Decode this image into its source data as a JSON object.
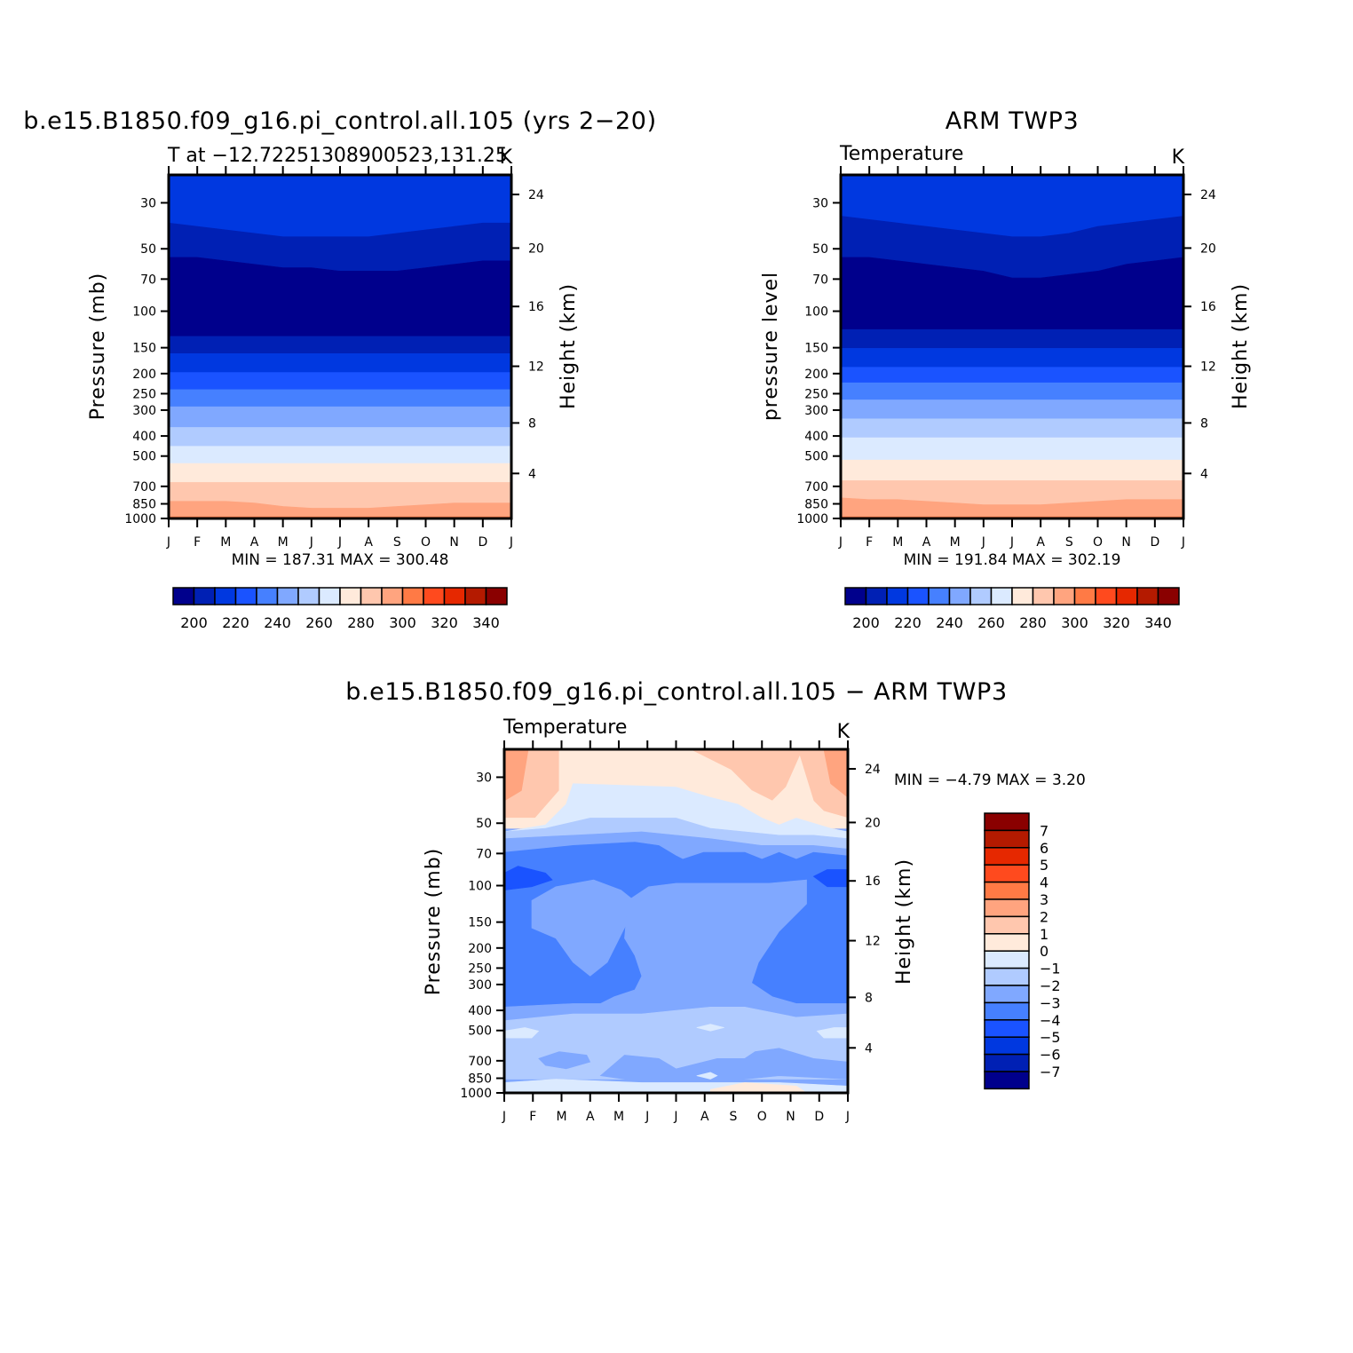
{
  "palette": [
    "#00008c",
    "#0020b4",
    "#0038e0",
    "#1a53ff",
    "#4680ff",
    "#80a8ff",
    "#b0cbff",
    "#dbeaff",
    "#ffeadb",
    "#ffc7ae",
    "#ffa47f",
    "#ff7a45",
    "#ff4a1e",
    "#e62800",
    "#b41a00",
    "#8a0000"
  ],
  "months": [
    "J",
    "F",
    "M",
    "A",
    "M",
    "J",
    "J",
    "A",
    "S",
    "O",
    "N",
    "D",
    "J"
  ],
  "pressure_ticks": [
    "30",
    "50",
    "70",
    "100",
    "150",
    "200",
    "250",
    "300",
    "400",
    "500",
    "700",
    "850",
    "1000"
  ],
  "height_ticks": [
    "24",
    "20",
    "16",
    "12",
    "8",
    "4"
  ],
  "chart_data": [
    {
      "type": "heatmap",
      "id": "model",
      "title": "b.e15.B1850.f09_g16.pi_control.all.105 (yrs 2−20)",
      "subtitle_left": "T at −12.72251308900523,131.25",
      "subtitle_right": "K",
      "ylabel_left": "Pressure (mb)",
      "ylabel_right": "Height (km)",
      "minmax_text": "MIN = 187.31 MAX = 300.48",
      "min": 187.31,
      "max": 300.48,
      "colorbar": {
        "orientation": "horizontal",
        "levels": [
          195,
          200,
          205,
          210,
          215,
          220,
          225,
          230,
          235,
          240,
          245,
          250,
          255,
          260,
          265,
          270,
          275,
          280,
          285,
          290,
          295,
          300,
          305,
          310,
          315,
          320,
          325,
          330,
          335,
          340,
          345
        ],
        "labels": [
          "200",
          "220",
          "240",
          "260",
          "280",
          "300",
          "320",
          "340"
        ]
      }
    },
    {
      "type": "heatmap",
      "id": "obs",
      "title": "ARM TWP3",
      "subtitle_left": "Temperature",
      "subtitle_right": "K",
      "ylabel_left": "pressure level",
      "ylabel_right": "Height (km)",
      "minmax_text": "MIN = 191.84 MAX = 302.19",
      "min": 191.84,
      "max": 302.19,
      "colorbar": {
        "orientation": "horizontal",
        "labels": [
          "200",
          "220",
          "240",
          "260",
          "280",
          "300",
          "320",
          "340"
        ]
      }
    },
    {
      "type": "heatmap",
      "id": "diff",
      "title": "b.e15.B1850.f09_g16.pi_control.all.105 − ARM TWP3",
      "subtitle_left": "Temperature",
      "subtitle_right": "K",
      "ylabel_left": "Pressure (mb)",
      "ylabel_right": "Height (km)",
      "minmax_text": "MIN = −4.79 MAX = 3.20",
      "min": -4.79,
      "max": 3.2,
      "colorbar": {
        "orientation": "vertical",
        "labels": [
          "7",
          "6",
          "5",
          "4",
          "3",
          "2",
          "1",
          "0",
          "−1",
          "−2",
          "−3",
          "−4",
          "−5",
          "−6",
          "−7"
        ]
      }
    }
  ]
}
